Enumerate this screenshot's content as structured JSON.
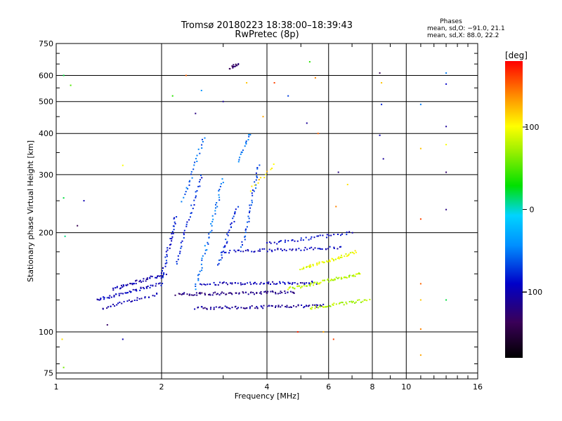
{
  "chart_data": {
    "type": "scatter",
    "title": "Tromsø 20180223 18:38:00–18:39:43",
    "subtitle": "RwPretec (8p)",
    "xlabel": "Frequency [MHz]",
    "ylabel": "Stationary phase Virtual Height [km]",
    "xscale": "log",
    "yscale": "log",
    "xlim": [
      1,
      16
    ],
    "ylim": [
      72,
      750
    ],
    "x_ticks": [
      "1",
      "2",
      "4",
      "6",
      "8",
      "10",
      "16"
    ],
    "x_tick_values": [
      1,
      2,
      4,
      6,
      8,
      10,
      16
    ],
    "y_ticks": [
      "75",
      "100",
      "200",
      "300",
      "400",
      "500",
      "600",
      "750"
    ],
    "y_tick_values": [
      75,
      100,
      200,
      300,
      400,
      500,
      600,
      750
    ],
    "grid": true,
    "stats": {
      "heading": "Phases",
      "o_line": "mean, sd,O: −91.0, 21.1",
      "x_line": "mean, sd,X:  88.0, 22.2"
    },
    "colorbar": {
      "label": "[deg]",
      "range": [
        -180,
        180
      ],
      "ticks": [
        "100",
        "0",
        "−100"
      ],
      "tick_values": [
        100,
        0,
        -100
      ]
    },
    "series": [
      {
        "traces": [
          {
            "x0": 1.3,
            "x1": 2.0,
            "h0": 125,
            "h1": 140,
            "phase": -95,
            "n": 50
          },
          {
            "x0": 1.45,
            "x1": 2.05,
            "h0": 135,
            "h1": 150,
            "phase": -100,
            "n": 45
          },
          {
            "x0": 1.35,
            "x1": 1.95,
            "h0": 118,
            "h1": 130,
            "phase": -105,
            "n": 30
          },
          {
            "x0": 2.0,
            "x1": 2.2,
            "h0": 145,
            "h1": 225,
            "phase": -85,
            "n": 35
          },
          {
            "x0": 2.2,
            "x1": 2.6,
            "h0": 160,
            "h1": 300,
            "phase": -80,
            "n": 35
          },
          {
            "x0": 2.5,
            "x1": 3.0,
            "h0": 135,
            "h1": 290,
            "phase": -55,
            "n": 45
          },
          {
            "x0": 2.9,
            "x1": 3.3,
            "h0": 160,
            "h1": 240,
            "phase": -75,
            "n": 30
          },
          {
            "x0": 3.4,
            "x1": 3.8,
            "h0": 180,
            "h1": 320,
            "phase": -70,
            "n": 35
          },
          {
            "x0": 2.3,
            "x1": 2.65,
            "h0": 250,
            "h1": 390,
            "phase": -60,
            "n": 25
          },
          {
            "x0": 3.3,
            "x1": 3.6,
            "h0": 330,
            "h1": 400,
            "phase": -55,
            "n": 15
          },
          {
            "x0": 2.2,
            "x1": 4.8,
            "h0": 130,
            "h1": 132,
            "phase": -120,
            "n": 80
          },
          {
            "x0": 2.5,
            "x1": 5.8,
            "h0": 118,
            "h1": 120,
            "phase": -110,
            "n": 80
          },
          {
            "x0": 2.6,
            "x1": 5.5,
            "h0": 140,
            "h1": 141,
            "phase": -100,
            "n": 70
          },
          {
            "x0": 3.0,
            "x1": 6.5,
            "h0": 175,
            "h1": 180,
            "phase": -95,
            "n": 60
          },
          {
            "x0": 4.0,
            "x1": 7.0,
            "h0": 185,
            "h1": 200,
            "phase": -90,
            "n": 40
          },
          {
            "x0": 4.6,
            "x1": 7.4,
            "h0": 135,
            "h1": 150,
            "phase": 80,
            "n": 70
          },
          {
            "x0": 5.0,
            "x1": 7.2,
            "h0": 155,
            "h1": 175,
            "phase": 95,
            "n": 50
          },
          {
            "x0": 5.3,
            "x1": 7.8,
            "h0": 118,
            "h1": 125,
            "phase": 75,
            "n": 40
          },
          {
            "x0": 3.6,
            "x1": 4.2,
            "h0": 270,
            "h1": 320,
            "phase": 115,
            "n": 12
          },
          {
            "x0": 3.15,
            "x1": 3.3,
            "h0": 630,
            "h1": 650,
            "phase": -130,
            "n": 14
          }
        ],
        "scattered": [
          {
            "x": 1.05,
            "y": 600,
            "phase": 20
          },
          {
            "x": 1.05,
            "y": 255,
            "phase": 20
          },
          {
            "x": 1.06,
            "y": 195,
            "phase": 10
          },
          {
            "x": 1.04,
            "y": 95,
            "phase": 110
          },
          {
            "x": 1.05,
            "y": 78,
            "phase": 60
          },
          {
            "x": 1.1,
            "y": 560,
            "phase": 50
          },
          {
            "x": 1.15,
            "y": 210,
            "phase": -140
          },
          {
            "x": 1.2,
            "y": 250,
            "phase": -100
          },
          {
            "x": 1.55,
            "y": 320,
            "phase": 100
          },
          {
            "x": 1.55,
            "y": 95,
            "phase": -100
          },
          {
            "x": 1.4,
            "y": 105,
            "phase": -130
          },
          {
            "x": 2.35,
            "y": 600,
            "phase": 150
          },
          {
            "x": 2.15,
            "y": 520,
            "phase": 40
          },
          {
            "x": 2.6,
            "y": 540,
            "phase": -40
          },
          {
            "x": 2.5,
            "y": 460,
            "phase": -120
          },
          {
            "x": 3.0,
            "y": 500,
            "phase": -110
          },
          {
            "x": 3.5,
            "y": 570,
            "phase": 120
          },
          {
            "x": 3.9,
            "y": 450,
            "phase": 130
          },
          {
            "x": 4.2,
            "y": 570,
            "phase": 160
          },
          {
            "x": 4.6,
            "y": 520,
            "phase": -70
          },
          {
            "x": 5.3,
            "y": 660,
            "phase": 40
          },
          {
            "x": 5.5,
            "y": 590,
            "phase": 140
          },
          {
            "x": 5.2,
            "y": 430,
            "phase": -110
          },
          {
            "x": 5.6,
            "y": 400,
            "phase": 150
          },
          {
            "x": 6.4,
            "y": 305,
            "phase": -120
          },
          {
            "x": 6.8,
            "y": 280,
            "phase": 110
          },
          {
            "x": 6.3,
            "y": 240,
            "phase": 140
          },
          {
            "x": 8.4,
            "y": 610,
            "phase": -140
          },
          {
            "x": 8.5,
            "y": 570,
            "phase": 120
          },
          {
            "x": 8.5,
            "y": 490,
            "phase": -80
          },
          {
            "x": 8.4,
            "y": 395,
            "phase": -100
          },
          {
            "x": 8.6,
            "y": 335,
            "phase": -110
          },
          {
            "x": 11.0,
            "y": 490,
            "phase": -50
          },
          {
            "x": 11.0,
            "y": 360,
            "phase": 120
          },
          {
            "x": 11.0,
            "y": 220,
            "phase": 160
          },
          {
            "x": 11.0,
            "y": 140,
            "phase": 150
          },
          {
            "x": 11.0,
            "y": 125,
            "phase": 120
          },
          {
            "x": 11.0,
            "y": 102,
            "phase": 140
          },
          {
            "x": 11.0,
            "y": 85,
            "phase": 130
          },
          {
            "x": 13.0,
            "y": 610,
            "phase": -50
          },
          {
            "x": 13.0,
            "y": 565,
            "phase": -90
          },
          {
            "x": 13.0,
            "y": 420,
            "phase": -110
          },
          {
            "x": 13.0,
            "y": 305,
            "phase": -130
          },
          {
            "x": 13.0,
            "y": 235,
            "phase": -120
          },
          {
            "x": 13.0,
            "y": 125,
            "phase": 20
          },
          {
            "x": 13.0,
            "y": 370,
            "phase": 100
          },
          {
            "x": 5.8,
            "y": 100,
            "phase": 130
          },
          {
            "x": 6.2,
            "y": 95,
            "phase": 160
          },
          {
            "x": 4.9,
            "y": 100,
            "phase": 170
          }
        ]
      }
    ]
  }
}
